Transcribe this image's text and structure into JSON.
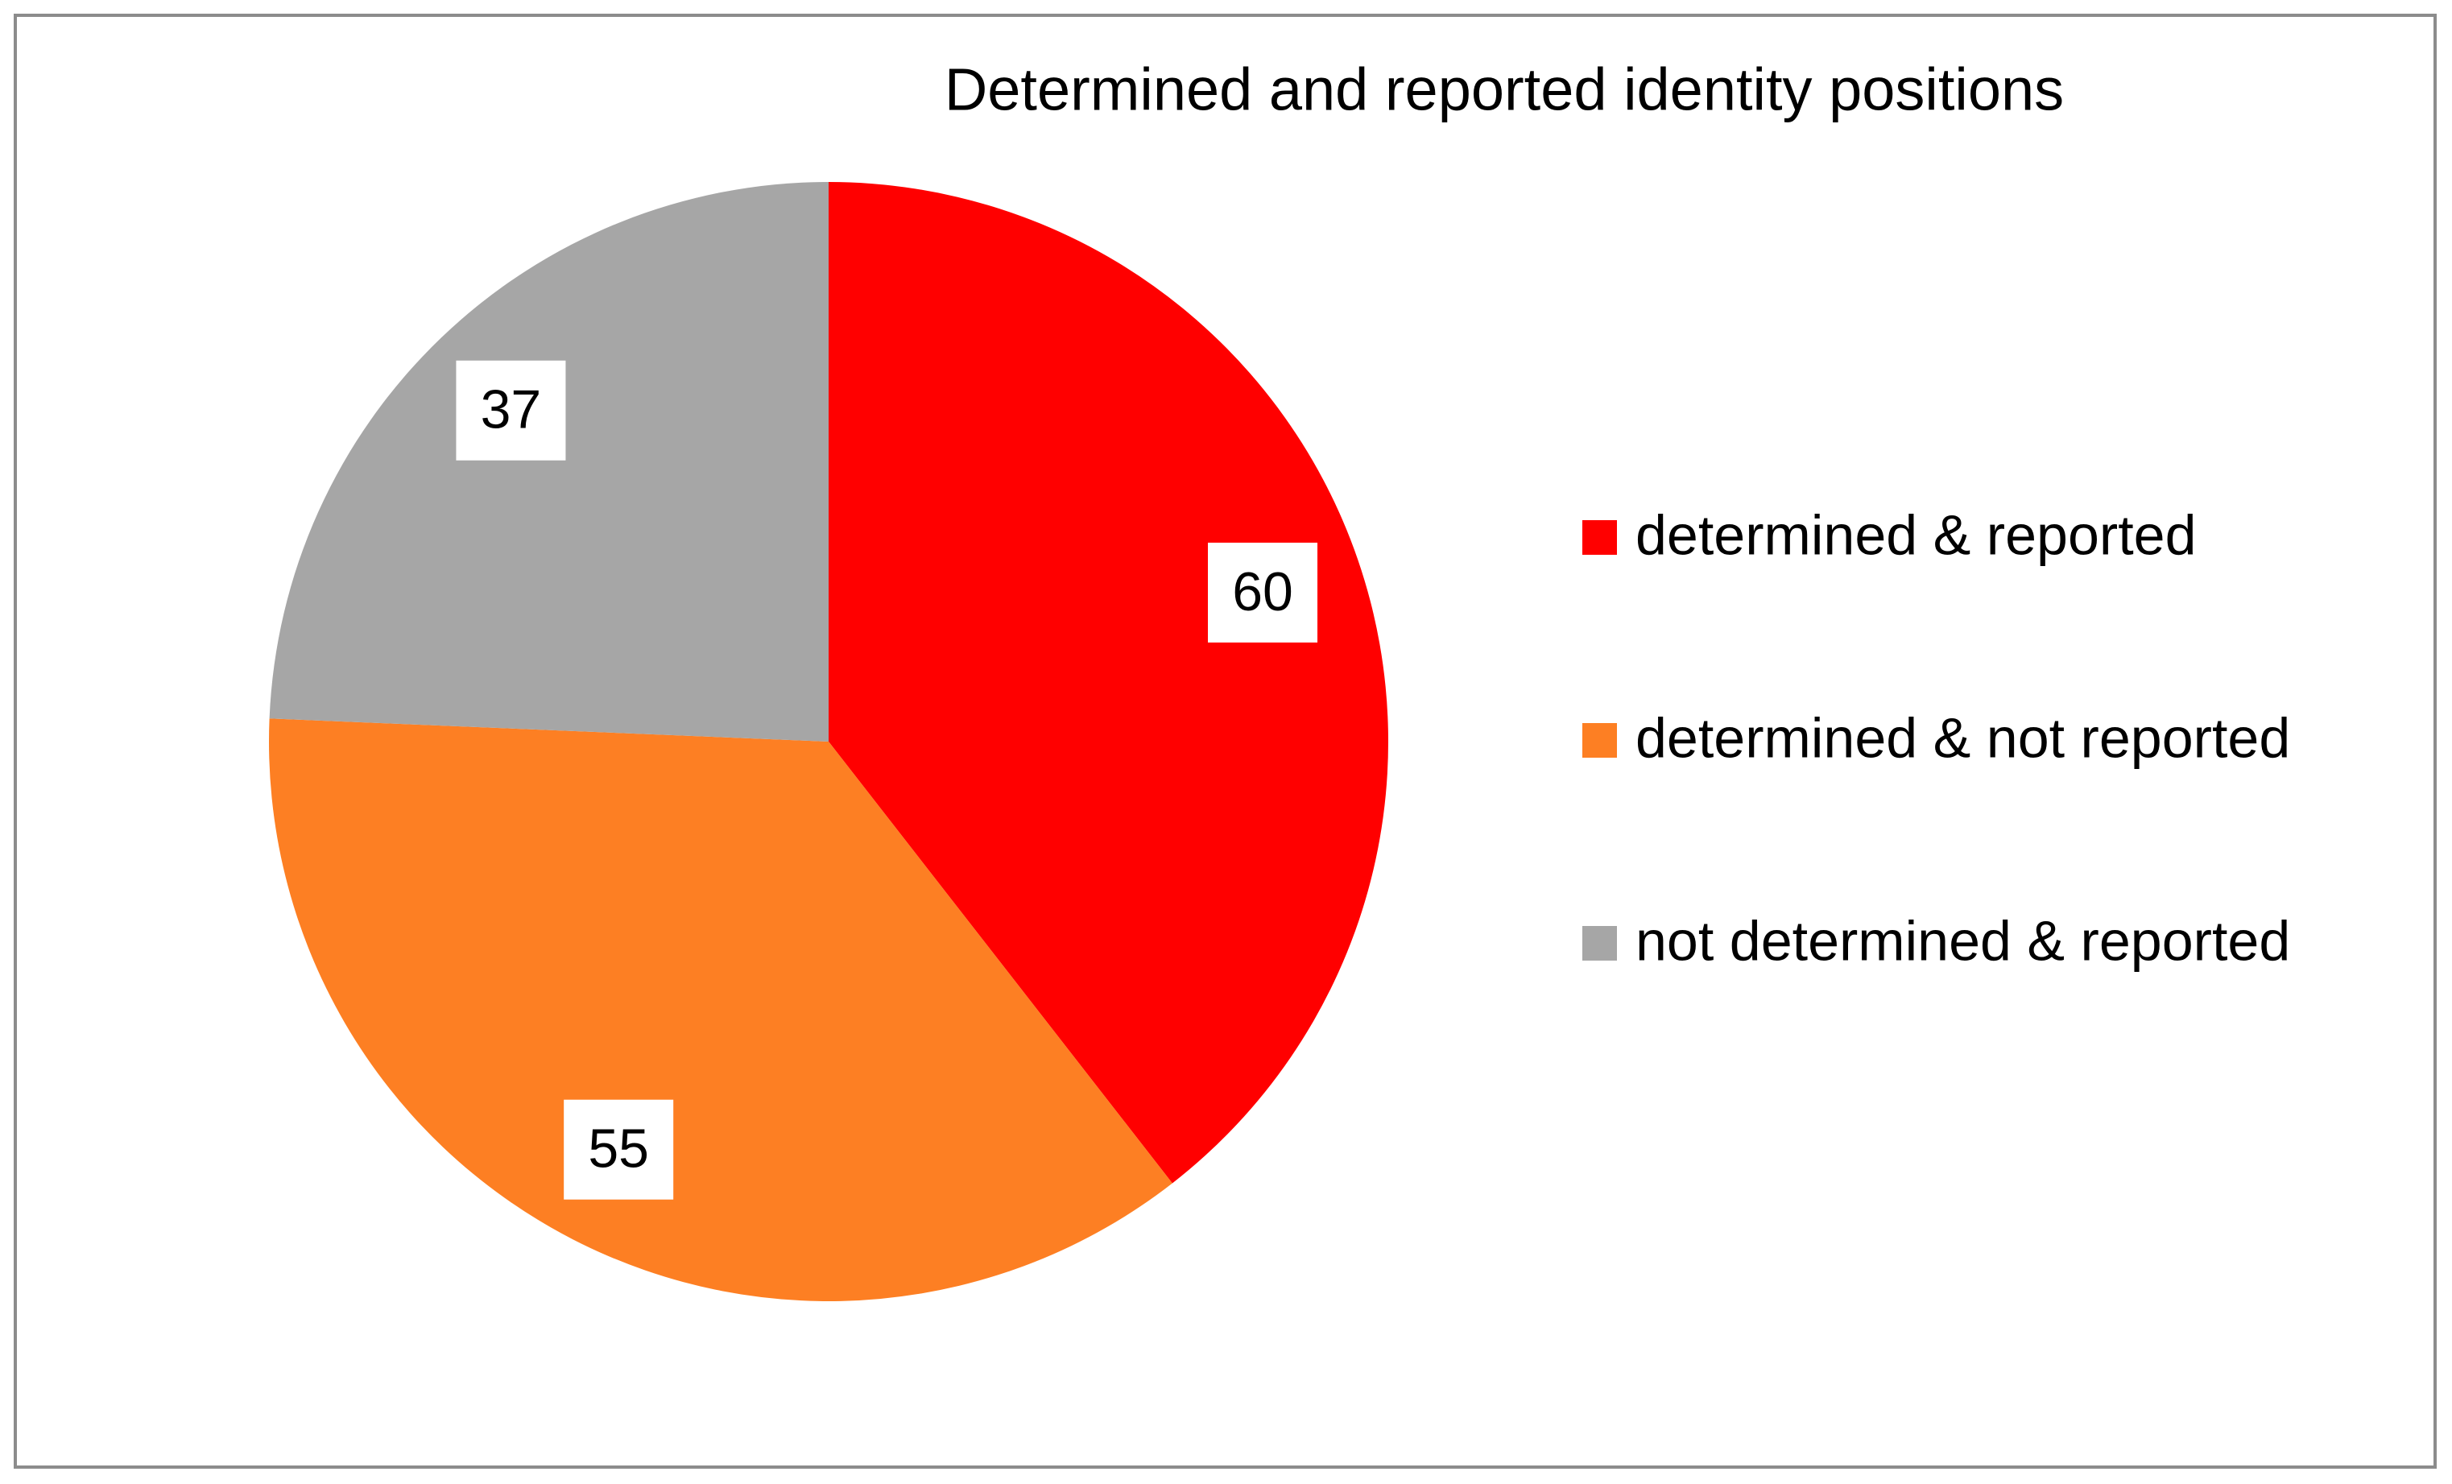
{
  "chart_data": {
    "type": "pie",
    "title": "Determined and reported identity positions",
    "categories": [
      "determined & reported",
      "determined & not reported",
      "not determined & reported"
    ],
    "values": [
      60,
      55,
      37
    ],
    "colors": [
      "#ff0000",
      "#fd7f23",
      "#a6a6a6"
    ],
    "legend": "right",
    "data_labels": true
  }
}
